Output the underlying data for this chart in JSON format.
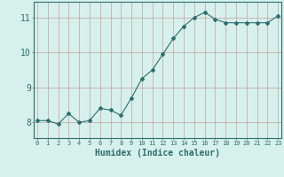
{
  "x": [
    0,
    1,
    2,
    3,
    4,
    5,
    6,
    7,
    8,
    9,
    10,
    11,
    12,
    13,
    14,
    15,
    16,
    17,
    18,
    19,
    20,
    21,
    22,
    23
  ],
  "y": [
    8.05,
    8.05,
    7.95,
    8.25,
    8.0,
    8.05,
    8.4,
    8.35,
    8.2,
    8.7,
    9.25,
    9.5,
    9.95,
    10.4,
    10.75,
    11.0,
    11.15,
    10.95,
    10.85,
    10.85,
    10.85,
    10.85,
    10.85,
    11.05
  ],
  "line_color": "#2d6e6e",
  "marker": "D",
  "marker_size": 2,
  "bg_color": "#d6f0ec",
  "grid_color": "#c4a0a0",
  "xlabel": "Humidex (Indice chaleur)",
  "xlabel_fontsize": 7,
  "ytick_labels": [
    "8",
    "9",
    "10",
    "11"
  ],
  "ytick_vals": [
    8,
    9,
    10,
    11
  ],
  "xticks": [
    0,
    1,
    2,
    3,
    4,
    5,
    6,
    7,
    8,
    9,
    10,
    11,
    12,
    13,
    14,
    15,
    16,
    17,
    18,
    19,
    20,
    21,
    22,
    23
  ],
  "xlim": [
    -0.3,
    23.3
  ],
  "ylim": [
    7.55,
    11.45
  ]
}
